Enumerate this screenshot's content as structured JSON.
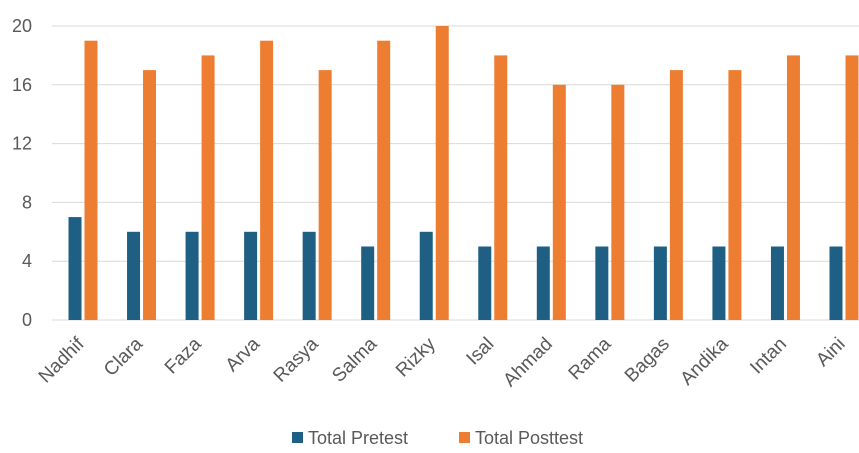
{
  "chart_data": {
    "type": "bar",
    "categories": [
      "Nadhif",
      "Clara",
      "Faza",
      "Arva",
      "Rasya",
      "Salma",
      "Rizky",
      "Isal",
      "Ahmad",
      "Rama",
      "Bagas",
      "Andika",
      "Intan",
      "Aini"
    ],
    "series": [
      {
        "name": "Total Pretest",
        "color": "#1f5f84",
        "values": [
          7,
          6,
          6,
          6,
          6,
          5,
          6,
          5,
          5,
          5,
          5,
          5,
          5,
          5
        ]
      },
      {
        "name": "Total Posttest",
        "color": "#ed7d31",
        "values": [
          19,
          17,
          18,
          19,
          17,
          19,
          20,
          18,
          16,
          16,
          17,
          17,
          18,
          18
        ]
      }
    ],
    "y_ticks": [
      "0",
      "4",
      "8",
      "12",
      "16",
      "20"
    ],
    "ylim": [
      0,
      20
    ],
    "grid": true,
    "legend_position": "bottom"
  }
}
